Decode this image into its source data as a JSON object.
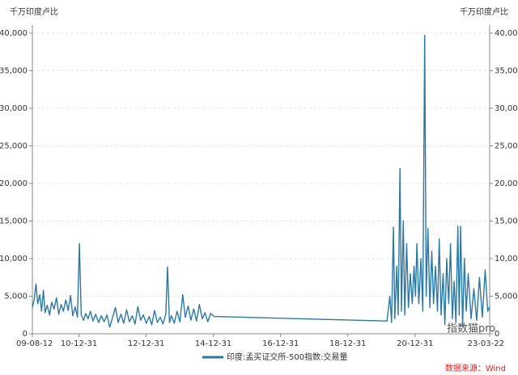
{
  "chart_data": {
    "type": "line",
    "y_axis_label": "千万印度卢比",
    "y2_axis_label": "千万印度卢比",
    "legend_position": "bottom",
    "source": "数据来源：Wind",
    "watermark": "指数猫pro",
    "grid": true,
    "xlim": [
      "09-08-12",
      "23-03-22"
    ],
    "xticks": [
      "09-08-12",
      "10-12-31",
      "12-12-31",
      "14-12-31",
      "16-12-31",
      "18-12-31",
      "20-12-31",
      "23-03-22"
    ],
    "ylim": [
      0,
      40000
    ],
    "yticks": [
      0,
      {
        "value": 5000,
        "label": "5,000"
      },
      {
        "value": 10000,
        "label": "10,000"
      },
      {
        "value": 15000,
        "label": "15,000"
      },
      {
        "value": 20000,
        "label": "20,000"
      },
      {
        "value": 25000,
        "label": "25,000"
      },
      {
        "value": 30000,
        "label": "30,000"
      },
      {
        "value": 35000,
        "label": "35,000"
      },
      {
        "value": 40000,
        "label": "40,000"
      }
    ],
    "y2lim": [
      0,
      40000
    ],
    "y2ticks": [
      0,
      {
        "value": 5000,
        "label": "5,000"
      },
      {
        "value": 10000,
        "label": "10,000"
      },
      {
        "value": 15000,
        "label": "15,000"
      },
      {
        "value": 20000,
        "label": "20,000"
      },
      {
        "value": 25000,
        "label": "25,000"
      },
      {
        "value": 30000,
        "label": "30,000"
      },
      {
        "value": 35000,
        "label": "35,000"
      },
      {
        "value": 40000,
        "label": "40,000"
      }
    ],
    "x": [
      "09-08-12",
      "09-09-01",
      "09-09-20",
      "09-10-10",
      "09-11-01",
      "09-11-20",
      "09-12-10",
      "09-12-28",
      "10-01-20",
      "10-02-15",
      "10-03-10",
      "10-04-05",
      "10-05-01",
      "10-05-25",
      "10-06-20",
      "10-07-15",
      "10-08-10",
      "10-09-05",
      "10-10-01",
      "10-10-25",
      "10-11-20",
      "10-12-15",
      "11-01-05",
      "11-01-25",
      "11-02-20",
      "11-03-15",
      "11-04-10",
      "11-05-05",
      "11-06-01",
      "11-07-01",
      "11-08-01",
      "11-09-01",
      "11-10-01",
      "11-11-01",
      "11-12-01",
      "12-01-01",
      "12-02-01",
      "12-03-01",
      "12-04-01",
      "12-05-01",
      "12-06-01",
      "12-07-01",
      "12-08-01",
      "12-09-01",
      "12-10-01",
      "12-11-01",
      "12-12-01",
      "13-01-01",
      "13-02-01",
      "13-03-01",
      "13-04-01",
      "13-05-01",
      "13-06-01",
      "13-07-01",
      "13-08-01",
      "13-08-20",
      "13-09-10",
      "13-10-01",
      "13-11-01",
      "13-12-01",
      "14-01-01",
      "14-02-01",
      "14-03-01",
      "14-04-01",
      "14-05-01",
      "14-06-01",
      "14-07-01",
      "14-08-01",
      "14-09-01",
      "14-10-01",
      "14-11-01",
      "14-12-01",
      "15-01-10",
      "20-03-01",
      "20-04-01",
      "20-04-20",
      "20-05-10",
      "20-05-25",
      "20-06-15",
      "20-07-01",
      "20-07-20",
      "20-08-05",
      "20-08-25",
      "20-09-10",
      "20-10-01",
      "20-10-20",
      "20-11-10",
      "20-12-01",
      "20-12-20",
      "21-01-05",
      "21-01-20",
      "21-02-10",
      "21-03-05",
      "21-03-25",
      "21-04-15",
      "21-05-01",
      "21-05-20",
      "21-06-10",
      "21-07-01",
      "21-07-20",
      "21-08-10",
      "21-09-01",
      "21-09-20",
      "21-10-10",
      "21-11-01",
      "21-11-20",
      "21-12-10",
      "22-01-01",
      "22-01-20",
      "22-02-10",
      "22-03-01",
      "22-03-20",
      "22-04-10",
      "22-04-25",
      "22-05-10",
      "22-06-01",
      "22-06-20",
      "22-07-10",
      "22-08-01",
      "22-09-01",
      "22-10-01",
      "22-11-01",
      "22-12-01",
      "23-01-01",
      "23-02-01",
      "23-03-01",
      "23-03-22"
    ],
    "series": [
      {
        "name": "印度:孟买证交所-500指数:交易量",
        "color": "#2a78a3",
        "values": [
          3500,
          4600,
          6600,
          4000,
          5200,
          3000,
          5800,
          2800,
          3800,
          2500,
          4200,
          3300,
          4800,
          2600,
          3900,
          3000,
          4500,
          3100,
          5100,
          2400,
          3600,
          2200,
          12000,
          2500,
          1800,
          2700,
          2000,
          3000,
          1700,
          2600,
          1500,
          2400,
          1600,
          2500,
          900,
          2200,
          3500,
          1500,
          2600,
          1400,
          3200,
          1600,
          2400,
          1300,
          3600,
          1800,
          2500,
          1400,
          2300,
          1200,
          3100,
          1500,
          2200,
          1300,
          2600,
          8900,
          1500,
          2400,
          1400,
          3000,
          1600,
          5200,
          2200,
          3700,
          1800,
          3300,
          1700,
          3900,
          2000,
          2800,
          1600,
          2700,
          2300,
          1700,
          5000,
          1500,
          14200,
          2000,
          9000,
          2500,
          22000,
          3000,
          15000,
          2500,
          12000,
          3500,
          8000,
          4000,
          9000,
          5000,
          12000,
          4000,
          10000,
          3000,
          39700,
          5000,
          14000,
          3500,
          11000,
          4000,
          9000,
          3000,
          12600,
          2500,
          8000,
          1200,
          10000,
          4000,
          12000,
          2000,
          7000,
          1500,
          14300,
          2500,
          14300,
          1000,
          10000,
          3000,
          8000,
          2000,
          6000,
          1800,
          7500,
          2200,
          8500,
          3000,
          3600
        ]
      }
    ]
  }
}
